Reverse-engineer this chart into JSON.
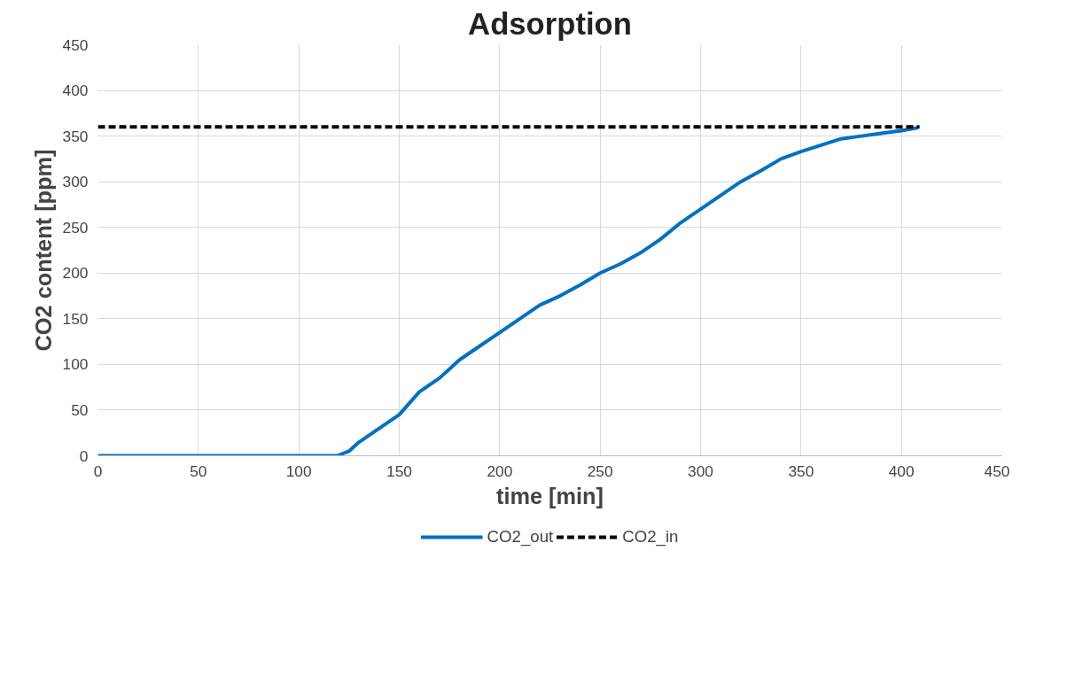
{
  "chart_data": {
    "type": "line",
    "title": "Adsorption",
    "xlabel": "time [min]",
    "ylabel": "CO2 content [ppm]",
    "xlim": [
      0,
      450
    ],
    "xticks": [
      0,
      50,
      100,
      150,
      200,
      250,
      300,
      350,
      400,
      450
    ],
    "ylim": [
      0,
      450
    ],
    "yticks": [
      0,
      50,
      100,
      150,
      200,
      250,
      300,
      350,
      400,
      450
    ],
    "grid": true,
    "legend": "bottom",
    "marker": "none",
    "series": [
      {
        "name": "CO2_out",
        "color": "#0070c0",
        "line_style": "solid",
        "x": [
          0,
          50,
          100,
          119,
          125,
          130,
          140,
          150,
          160,
          170,
          180,
          190,
          200,
          210,
          220,
          230,
          240,
          250,
          260,
          270,
          280,
          290,
          300,
          310,
          320,
          330,
          340,
          350,
          360,
          370,
          380,
          390,
          400,
          408
        ],
        "values": [
          0,
          0,
          0,
          0,
          5,
          15,
          30,
          45,
          70,
          85,
          105,
          120,
          135,
          150,
          165,
          175,
          187,
          200,
          210,
          222,
          237,
          255,
          270,
          285,
          300,
          312,
          325,
          333,
          340,
          347,
          350,
          353,
          356,
          359
        ]
      },
      {
        "name": "CO2_in",
        "color": "#000000",
        "line_style": "dashed",
        "x": [
          0,
          409
        ],
        "values": [
          360,
          360
        ]
      }
    ]
  }
}
